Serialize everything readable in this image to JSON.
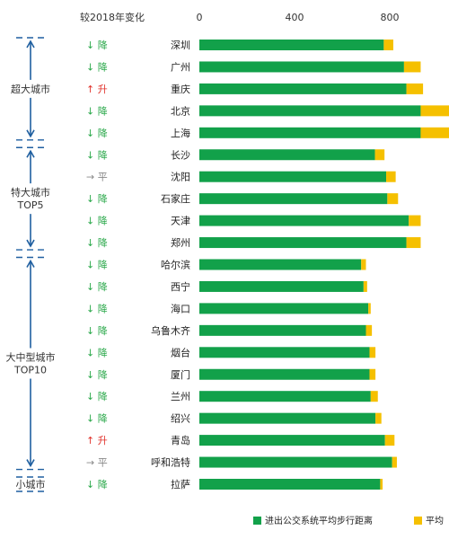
{
  "chart_data": {
    "type": "bar",
    "orientation": "horizontal",
    "stacked": true,
    "change_header": "较2018年变化",
    "x_ticks": [
      0,
      400,
      800
    ],
    "xlim": [
      0,
      1220
    ],
    "categories": [
      "深圳",
      "广州",
      "重庆",
      "北京",
      "上海",
      "长沙",
      "沈阳",
      "石家庄",
      "天津",
      "郑州",
      "哈尔滨",
      "西宁",
      "海口",
      "乌鲁木齐",
      "烟台",
      "厦门",
      "兰州",
      "绍兴",
      "青岛",
      "呼和浩特",
      "拉萨"
    ],
    "changes": [
      {
        "arrow": "↓",
        "text": "降",
        "color": "#2aa84a"
      },
      {
        "arrow": "↓",
        "text": "降",
        "color": "#2aa84a"
      },
      {
        "arrow": "↑",
        "text": "升",
        "color": "#e0322b"
      },
      {
        "arrow": "↓",
        "text": "降",
        "color": "#2aa84a"
      },
      {
        "arrow": "↓",
        "text": "降",
        "color": "#2aa84a"
      },
      {
        "arrow": "↓",
        "text": "降",
        "color": "#2aa84a"
      },
      {
        "arrow": "→",
        "text": "平",
        "color": "#888888"
      },
      {
        "arrow": "↓",
        "text": "降",
        "color": "#2aa84a"
      },
      {
        "arrow": "↓",
        "text": "降",
        "color": "#2aa84a"
      },
      {
        "arrow": "↓",
        "text": "降",
        "color": "#2aa84a"
      },
      {
        "arrow": "↓",
        "text": "降",
        "color": "#2aa84a"
      },
      {
        "arrow": "↓",
        "text": "降",
        "color": "#2aa84a"
      },
      {
        "arrow": "↓",
        "text": "降",
        "color": "#2aa84a"
      },
      {
        "arrow": "↓",
        "text": "降",
        "color": "#2aa84a"
      },
      {
        "arrow": "↓",
        "text": "降",
        "color": "#2aa84a"
      },
      {
        "arrow": "↓",
        "text": "降",
        "color": "#2aa84a"
      },
      {
        "arrow": "↓",
        "text": "降",
        "color": "#2aa84a"
      },
      {
        "arrow": "↓",
        "text": "降",
        "color": "#2aa84a"
      },
      {
        "arrow": "↑",
        "text": "升",
        "color": "#e0322b"
      },
      {
        "arrow": "→",
        "text": "平",
        "color": "#888888"
      },
      {
        "arrow": "↓",
        "text": "降",
        "color": "#2aa84a"
      }
    ],
    "groups": [
      {
        "label_lines": [
          "超大城市"
        ],
        "start": 0,
        "end": 4
      },
      {
        "label_lines": [
          "特大城市",
          "TOP5"
        ],
        "start": 5,
        "end": 9
      },
      {
        "label_lines": [
          "大中型城市",
          "TOP10"
        ],
        "start": 10,
        "end": 19
      },
      {
        "label_lines": [
          "小城市"
        ],
        "start": 20,
        "end": 20
      }
    ],
    "series": [
      {
        "name": "进出公交系统平均步行距离",
        "color": "#12a14a",
        "values": [
          775,
          860,
          870,
          930,
          930,
          738,
          785,
          790,
          880,
          870,
          680,
          690,
          710,
          700,
          715,
          715,
          720,
          740,
          780,
          810,
          760
        ]
      },
      {
        "name": "平均",
        "color": "#f5c000",
        "values": [
          40,
          70,
          70,
          120,
          120,
          40,
          40,
          45,
          50,
          60,
          20,
          15,
          10,
          25,
          25,
          25,
          30,
          25,
          40,
          20,
          10
        ]
      }
    ]
  }
}
